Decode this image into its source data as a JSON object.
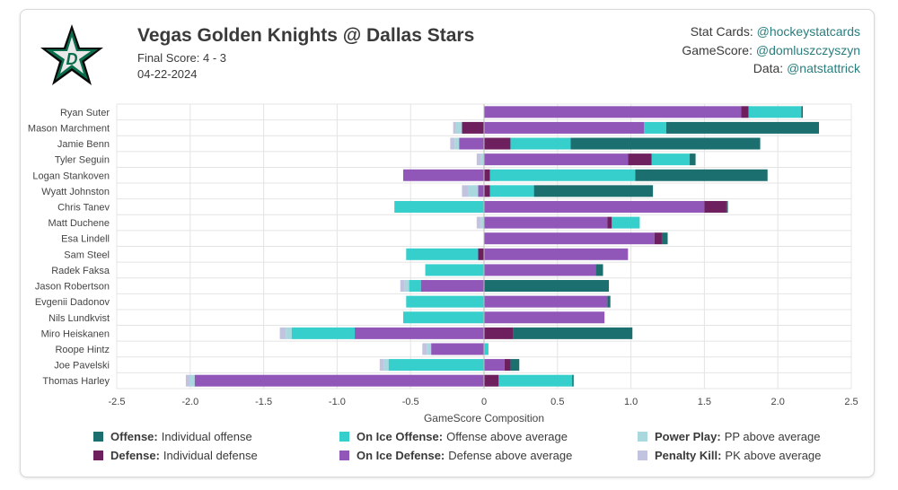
{
  "header": {
    "title": "Vegas Golden Knights @ Dallas Stars",
    "final_score": "Final Score: 4 - 3",
    "date": "04-22-2024",
    "logo_letter": "D"
  },
  "credits": {
    "stat_cards_label": "Stat Cards:",
    "stat_cards_handle": "@hockeystatcards",
    "gamescore_label": "GameScore:",
    "gamescore_handle": "@domluszczyszyn",
    "data_label": "Data:",
    "data_handle": "@natstattrick"
  },
  "colors": {
    "offense": "#1b6f6f",
    "on_ice_offense": "#36cfcb",
    "power_play": "#a9d8df",
    "defense": "#6d1f5e",
    "on_ice_defense": "#9157b8",
    "penalty_kill": "#c2c3de"
  },
  "legend": [
    {
      "key": "offense",
      "bold": "Offense:",
      "text": "Individual offense"
    },
    {
      "key": "on_ice_offense",
      "bold": "On Ice Offense:",
      "text": "Offense above average"
    },
    {
      "key": "power_play",
      "bold": "Power Play:",
      "text": "PP above average"
    },
    {
      "key": "defense",
      "bold": "Defense:",
      "text": "Individual defense"
    },
    {
      "key": "on_ice_defense",
      "bold": "On Ice Defense:",
      "text": "Defense above average"
    },
    {
      "key": "penalty_kill",
      "bold": "Penalty Kill:",
      "text": "PK above average"
    }
  ],
  "chart_data": {
    "type": "bar",
    "orientation": "horizontal",
    "stacked": true,
    "xlabel": "GameScore Composition",
    "xlim": [
      -2.5,
      2.5
    ],
    "xticks": [
      "-2.5",
      "-2.0",
      "-1.5",
      "-1.0",
      "-0.5",
      "0",
      "0.5",
      "1.0",
      "1.5",
      "2.0",
      "2.5"
    ],
    "xtick_values": [
      -2.5,
      -2.0,
      -1.5,
      -1.0,
      -0.5,
      0,
      0.5,
      1.0,
      1.5,
      2.0,
      2.5
    ],
    "categories": [
      "Ryan Suter",
      "Mason Marchment",
      "Jamie Benn",
      "Tyler Seguin",
      "Logan Stankoven",
      "Wyatt Johnston",
      "Chris Tanev",
      "Matt Duchene",
      "Esa Lindell",
      "Sam Steel",
      "Radek Faksa",
      "Jason Robertson",
      "Evgenii Dadonov",
      "Nils Lundkvist",
      "Miro Heiskanen",
      "Roope Hintz",
      "Joe Pavelski",
      "Thomas Harley"
    ],
    "series_order": [
      "on_ice_defense",
      "defense",
      "on_ice_offense",
      "offense",
      "power_play",
      "penalty_kill"
    ],
    "series": [
      {
        "name": "On Ice Defense",
        "key": "on_ice_defense",
        "values": [
          1.75,
          1.09,
          -0.17,
          0.98,
          -0.55,
          -0.04,
          1.5,
          0.84,
          1.16,
          0.98,
          0.76,
          -0.43,
          0.84,
          0.82,
          -0.88,
          -0.36,
          0.14,
          -1.97
        ]
      },
      {
        "name": "Defense",
        "key": "defense",
        "values": [
          0.05,
          -0.15,
          0.18,
          0.16,
          0.04,
          0.04,
          0.15,
          0.03,
          0.05,
          -0.04,
          0.0,
          0.0,
          0.0,
          0.0,
          0.2,
          0.0,
          0.04,
          0.1
        ]
      },
      {
        "name": "On Ice Offense",
        "key": "on_ice_offense",
        "values": [
          0.36,
          0.15,
          0.41,
          0.26,
          0.99,
          0.3,
          -0.61,
          0.19,
          0.0,
          -0.49,
          -0.4,
          -0.08,
          -0.53,
          -0.55,
          -0.43,
          0.03,
          -0.65,
          0.5
        ]
      },
      {
        "name": "Offense",
        "key": "offense",
        "values": [
          0.01,
          1.04,
          1.29,
          0.04,
          0.9,
          0.81,
          0.01,
          0.0,
          0.04,
          0.0,
          0.05,
          0.85,
          0.02,
          0.0,
          0.81,
          0.0,
          0.06,
          0.01
        ]
      },
      {
        "name": "Power Play",
        "key": "power_play",
        "values": [
          0.0,
          -0.04,
          -0.03,
          -0.02,
          0.0,
          -0.07,
          0.0,
          -0.02,
          0.0,
          0.0,
          0.0,
          -0.03,
          0.0,
          0.0,
          -0.04,
          -0.03,
          -0.03,
          -0.03
        ]
      },
      {
        "name": "Penalty Kill",
        "key": "penalty_kill",
        "values": [
          0.0,
          -0.02,
          -0.03,
          -0.03,
          0.0,
          -0.04,
          0.0,
          -0.03,
          0.0,
          0.0,
          0.0,
          -0.03,
          0.0,
          0.0,
          -0.04,
          -0.03,
          -0.03,
          -0.03
        ]
      }
    ]
  }
}
